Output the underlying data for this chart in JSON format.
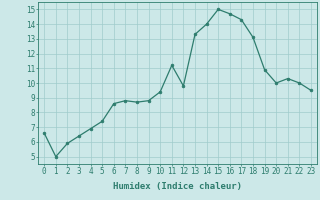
{
  "x": [
    0,
    1,
    2,
    3,
    4,
    5,
    6,
    7,
    8,
    9,
    10,
    11,
    12,
    13,
    14,
    15,
    16,
    17,
    18,
    19,
    20,
    21,
    22,
    23
  ],
  "y": [
    6.6,
    5.0,
    5.9,
    6.4,
    6.9,
    7.4,
    8.6,
    8.8,
    8.7,
    8.8,
    9.4,
    11.2,
    9.8,
    13.3,
    14.0,
    15.0,
    14.7,
    14.3,
    13.1,
    10.9,
    10.0,
    10.3,
    10.0,
    9.5
  ],
  "line_color": "#2e7d6e",
  "marker_color": "#2e7d6e",
  "bg_color": "#cce8e8",
  "grid_color": "#a0cccc",
  "xlabel": "Humidex (Indice chaleur)",
  "xlim": [
    -0.5,
    23.5
  ],
  "ylim": [
    4.5,
    15.5
  ],
  "yticks": [
    5,
    6,
    7,
    8,
    9,
    10,
    11,
    12,
    13,
    14,
    15
  ],
  "xticks": [
    0,
    1,
    2,
    3,
    4,
    5,
    6,
    7,
    8,
    9,
    10,
    11,
    12,
    13,
    14,
    15,
    16,
    17,
    18,
    19,
    20,
    21,
    22,
    23
  ],
  "tick_color": "#2e7d6e",
  "axis_color": "#2e7d6e",
  "label_color": "#2e7d6e",
  "font_size_xlabel": 6.5,
  "font_size_ticks": 5.5
}
